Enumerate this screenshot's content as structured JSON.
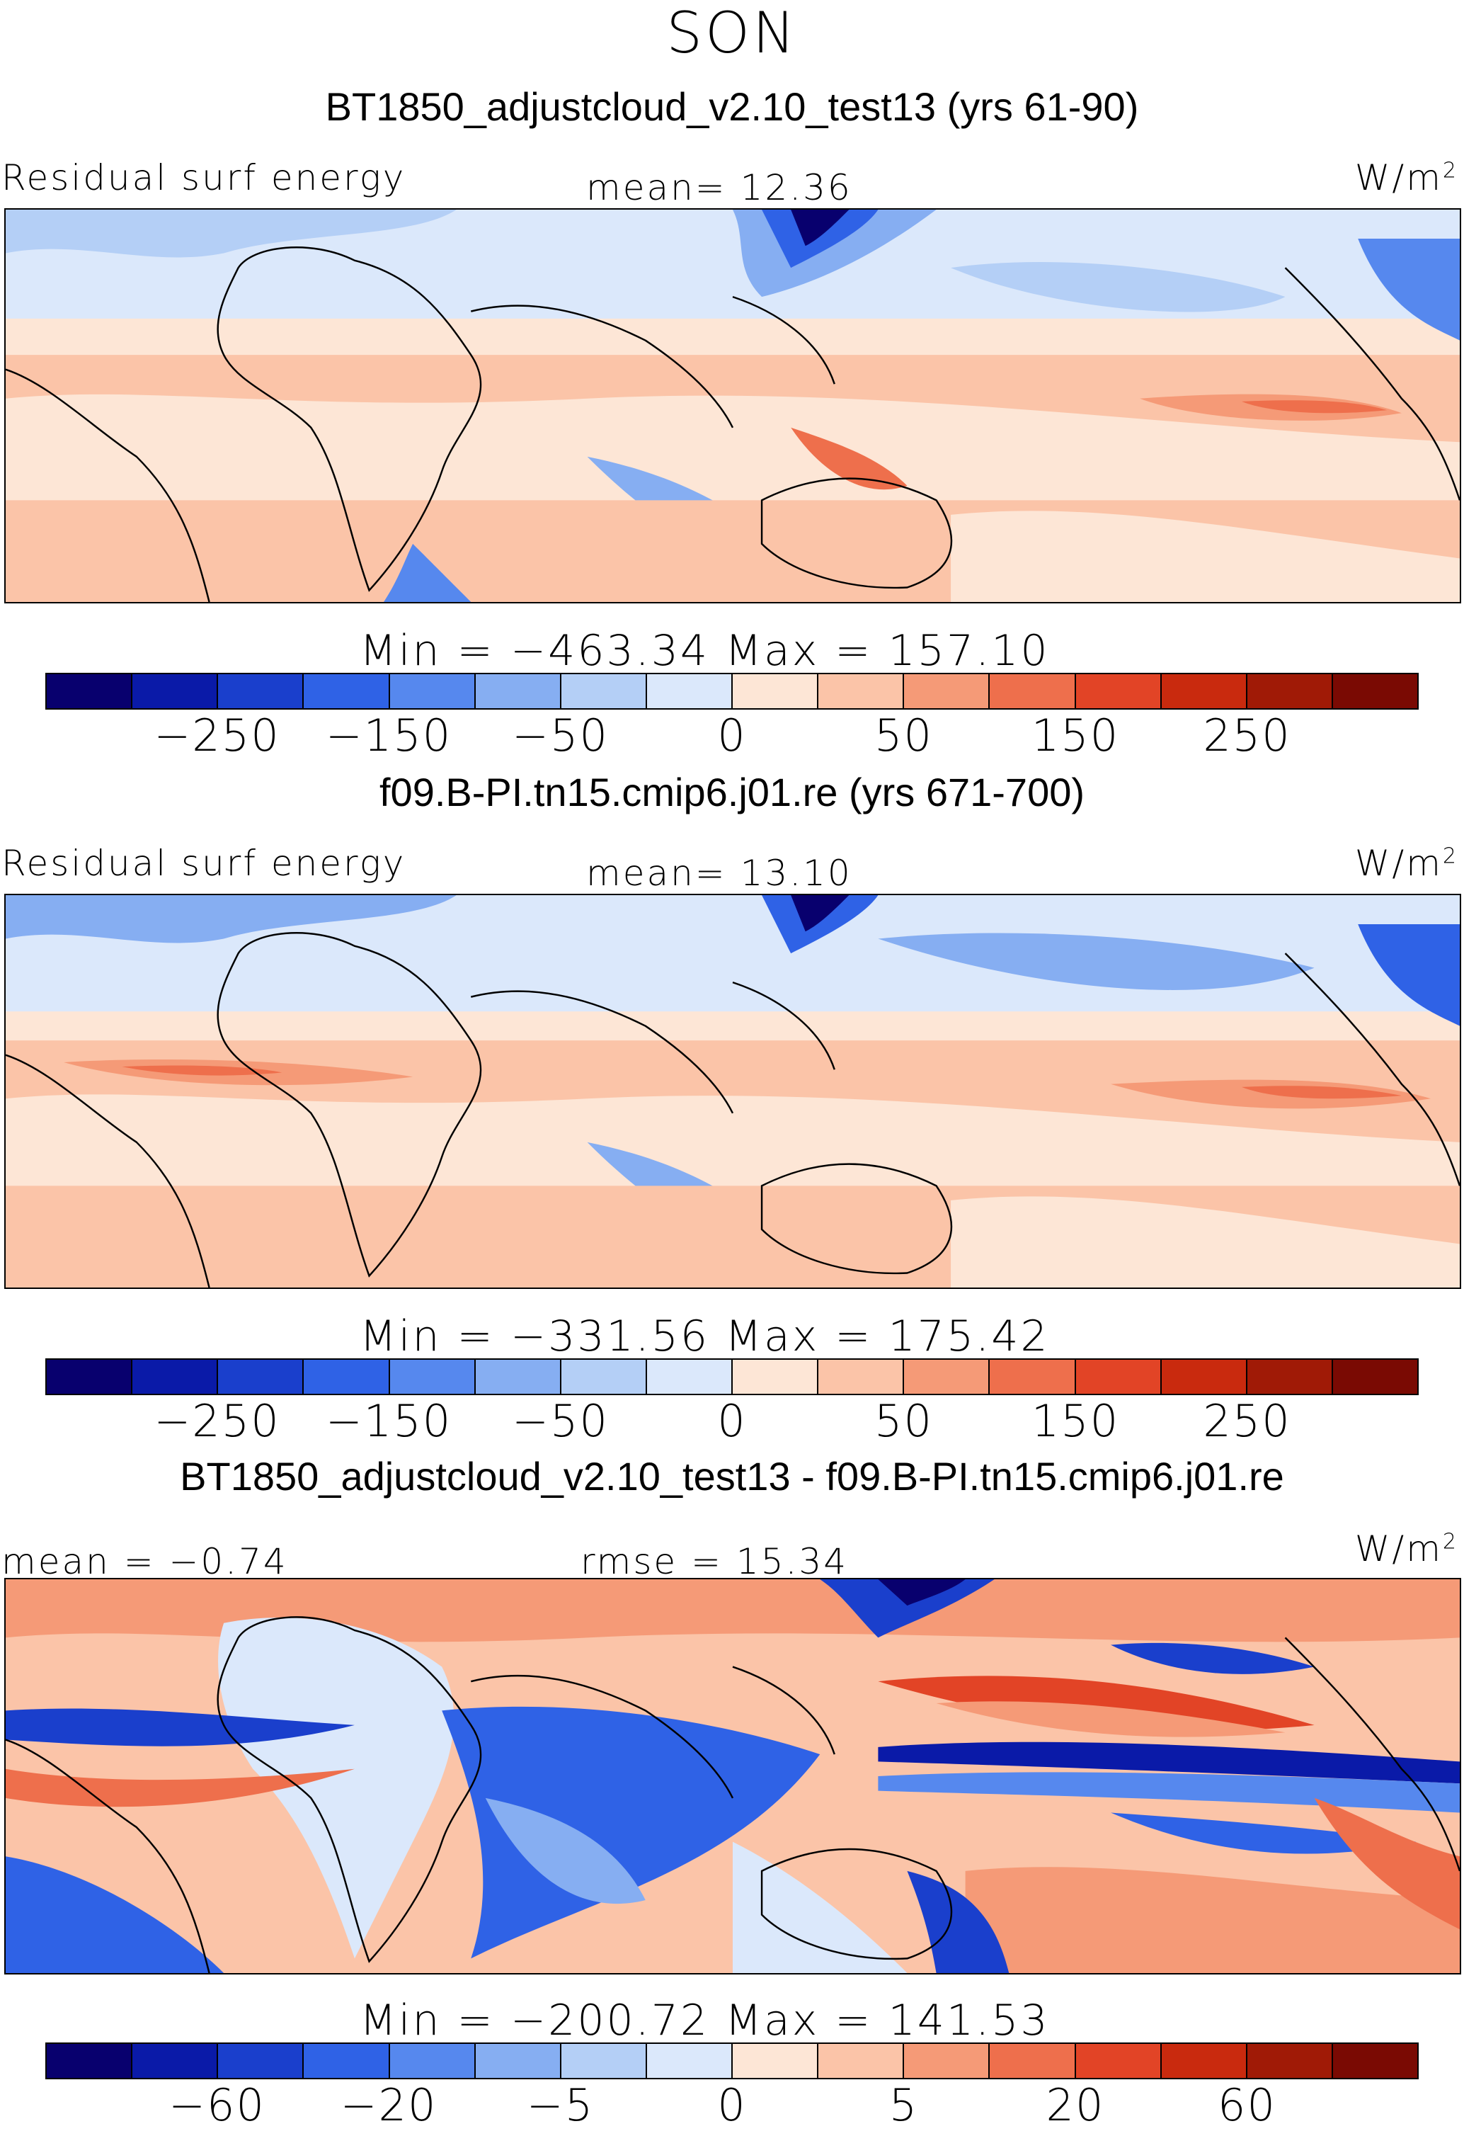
{
  "season": "SON",
  "colors": [
    "#08006e",
    "#0a1aa8",
    "#1a3fcc",
    "#2f62e6",
    "#5688ee",
    "#86aef2",
    "#b4cff6",
    "#dbe8fb",
    "#fde6d6",
    "#fbc4a8",
    "#f59a77",
    "#ee6f4c",
    "#e24426",
    "#c92a0e",
    "#a01a06",
    "#7a0a03"
  ],
  "panels": [
    {
      "title": "BT1850_adjustcloud_v2.10_test13 (yrs 61-90)",
      "left_label": "Residual surf energy",
      "center_label": "mean=   12.36",
      "unit": "W/m",
      "unit_sup": "2",
      "minmax": "Min  =  −463.34  Max  =  157.10",
      "ticks": [
        "−250",
        "−150",
        "−50",
        "0",
        "50",
        "150",
        "250"
      ]
    },
    {
      "title": "f09.B-PI.tn15.cmip6.j01.re (yrs 671-700)",
      "left_label": "Residual surf energy",
      "center_label": "mean=   13.10",
      "unit": "W/m",
      "unit_sup": "2",
      "minmax": "Min  =  −331.56  Max  =  175.42",
      "ticks": [
        "−250",
        "−150",
        "−50",
        "0",
        "50",
        "150",
        "250"
      ]
    },
    {
      "title": "BT1850_adjustcloud_v2.10_test13 - f09.B-PI.tn15.cmip6.j01.re",
      "left_label": "mean  =   −0.74",
      "center_label": "rmse  =   15.34",
      "unit": "W/m",
      "unit_sup": "2",
      "minmax": "Min  =  −200.72  Max  =  141.53",
      "ticks": [
        "−60",
        "−20",
        "−5",
        "0",
        "5",
        "20",
        "60"
      ]
    }
  ]
}
